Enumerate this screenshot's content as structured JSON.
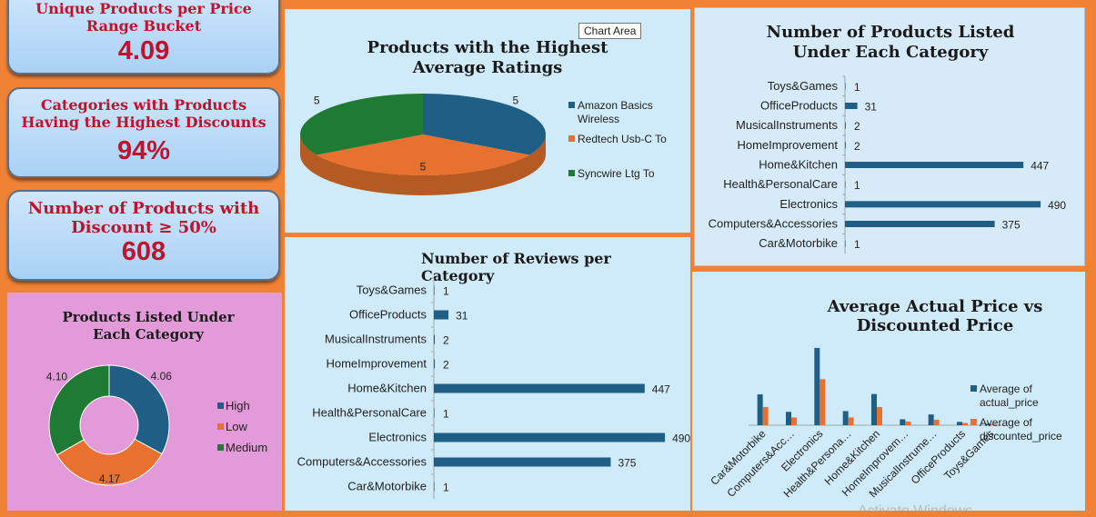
{
  "kpis": [
    {
      "label": "Unique Products per Price Range Bucket",
      "value": "4.09"
    },
    {
      "label": "Categories with Products Having the Highest Discounts",
      "value": "94%"
    },
    {
      "label": "Number of Products with Discount ≥ 50%",
      "value": "608"
    }
  ],
  "chart_area_tooltip": "Chart Area",
  "watermark": "Activate Windows",
  "colors": {
    "blue": "#1f5f86",
    "orange": "#e8712f",
    "green": "#1f7a34"
  },
  "chart_data": [
    {
      "id": "pie_ratings",
      "type": "pie",
      "title": "Products with the Highest Average Ratings",
      "categories": [
        "Amazon Basics Wireless",
        "Redtech Usb-C To",
        "Syncwire Ltg To"
      ],
      "values": [
        5,
        5,
        5
      ],
      "data_labels": [
        "5",
        "5",
        "5"
      ],
      "legend": "right"
    },
    {
      "id": "bar_products_top",
      "type": "bar",
      "orientation": "horizontal",
      "title": "Number of Products Listed Under Each Category",
      "categories": [
        "Toys&Games",
        "OfficeProducts",
        "MusicalInstruments",
        "HomeImprovement",
        "Home&Kitchen",
        "Health&PersonalCare",
        "Electronics",
        "Computers&Accessories",
        "Car&Motorbike"
      ],
      "values": [
        1,
        31,
        2,
        2,
        447,
        1,
        490,
        375,
        1
      ],
      "xlim": [
        0,
        550
      ]
    },
    {
      "id": "bar_reviews",
      "type": "bar",
      "orientation": "horizontal",
      "title": "Number of Reviews per Category",
      "categories": [
        "Toys&Games",
        "OfficeProducts",
        "MusicalInstruments",
        "HomeImprovement",
        "Home&Kitchen",
        "Health&PersonalCare",
        "Electronics",
        "Computers&Accessories",
        "Car&Motorbike"
      ],
      "values": [
        1,
        31,
        2,
        2,
        447,
        1,
        490,
        375,
        1
      ],
      "xlim": [
        0,
        550
      ]
    },
    {
      "id": "donut_products",
      "type": "pie",
      "title": "Products Listed Under Each Category",
      "categories": [
        "High",
        "Low",
        "Medium"
      ],
      "values": [
        4.06,
        4.17,
        4.1
      ],
      "data_labels": [
        "4.06",
        "4.17",
        "4.10"
      ],
      "legend": "right"
    },
    {
      "id": "bar_prices",
      "type": "bar",
      "orientation": "vertical",
      "title": "Average Actual Price vs Discounted Price",
      "categories": [
        "Car&Motorbike",
        "Computers&Acc…",
        "Electronics",
        "Health&Persona…",
        "Home&Kitchen",
        "HomeImprovem…",
        "MusicalInstrume…",
        "OfficeProducts",
        "Toys&Games"
      ],
      "series": [
        {
          "name": "Average of actual_price",
          "values": [
            4150,
            1800,
            10400,
            1900,
            4200,
            800,
            1450,
            450,
            200
          ]
        },
        {
          "name": "Average of discounted_price",
          "values": [
            2450,
            1050,
            6200,
            1050,
            2450,
            500,
            750,
            300,
            150
          ]
        }
      ],
      "ylim": [
        0,
        11000
      ],
      "legend": "right"
    }
  ]
}
